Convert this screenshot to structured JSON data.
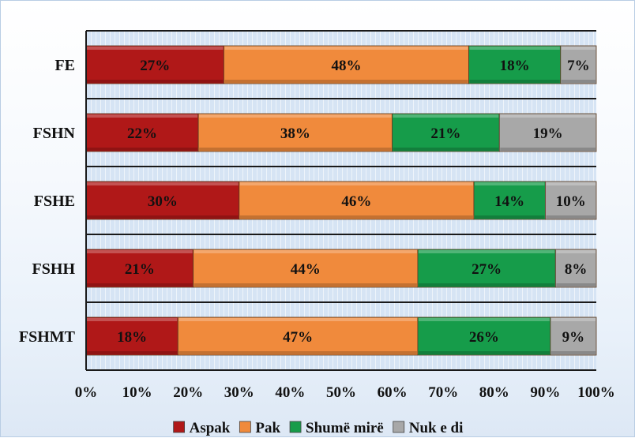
{
  "chart_data": {
    "type": "bar",
    "orientation": "horizontal",
    "stacked": "percent",
    "categories": [
      "FE",
      "FSHN",
      "FSHE",
      "FSHH",
      "FSHMT"
    ],
    "series": [
      {
        "name": "Aspak",
        "values": [
          27,
          22,
          30,
          21,
          18
        ],
        "labels": [
          "27%",
          "22%",
          "30%",
          "21%",
          "18%"
        ]
      },
      {
        "name": "Pak",
        "values": [
          48,
          38,
          46,
          44,
          47
        ],
        "labels": [
          "48%",
          "38%",
          "46%",
          "44%",
          "47%"
        ]
      },
      {
        "name": "Shumë mirë",
        "values": [
          18,
          21,
          14,
          27,
          26
        ],
        "labels": [
          "18%",
          "21%",
          "14%",
          "27%",
          "26%"
        ]
      },
      {
        "name": "Nuk e di",
        "values": [
          7,
          19,
          10,
          8,
          9
        ],
        "labels": [
          "7%",
          "19%",
          "10%",
          "8%",
          "9%"
        ]
      }
    ],
    "xlim": [
      0,
      100
    ],
    "xticks": [
      "0%",
      "10%",
      "20%",
      "30%",
      "40%",
      "50%",
      "60%",
      "70%",
      "80%",
      "90%",
      "100%"
    ],
    "colors": [
      "#b01818",
      "#f08a3c",
      "#169c4a",
      "#a8a8a8"
    ],
    "legend_position": "bottom",
    "grid": true
  }
}
